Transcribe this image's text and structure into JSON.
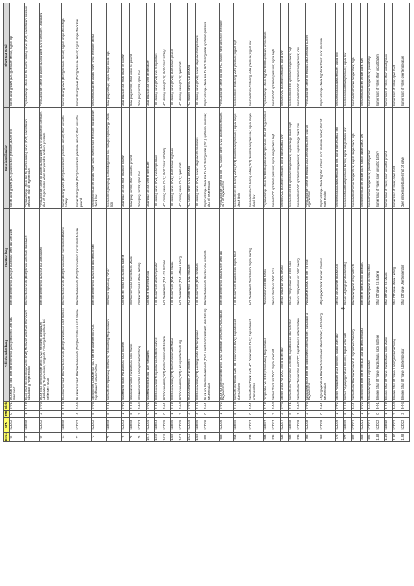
{
  "header": {
    "columns": [
      "Errorcode",
      "SPN",
      "FMI",
      "Blinkcode",
      "Fehlerbeschreibung",
      "Kurztext lang",
      "Error identification",
      "Short text Detail"
    ]
  },
  "table": {
    "rows": [
      [
        "65",
        "523012",
        "0",
        "2-2-1",
        "Drucksensor nach Brennerdosierventil (DV2) Messwert oberhalb Grenzwert",
        "Brennerdosierventil (DV2) Drucksensor oberhalb Grenzwert",
        "Burner dosing valve (DV2) downstream pressure; above limit",
        "Burner dosing valve (DV2) pressure sensor; signal high"
      ],
      [
        "66",
        "523012",
        "1",
        "2-2-2",
        "Druck nach Brennerdosierventil (DV2) Messwert unterhalb Grenzwert; Abschaltung Regeneration",
        "Brennerdosierventil (DV2) Druck unterhalb Grenzwert",
        "Physical range check low for burner dosing valve (DV2) downstream pressure; shut off regeneration",
        "Physical range check low for burner dosing valve (DV2) downstream pressure"
      ],
      [
        "69",
        "523012",
        "2",
        "2-2-3",
        "Druck nach Brennerdosierventil (DV2) Messwert unplausibel; Abschaltung Regeneration, Vergleich mit Umgebungsdruck bei stehendem Motor",
        "Brennerdosierventil (DV2) Druck unplausibel",
        "Physical range check for burner dosing valve (DV2) downstream pressure; shut off regeneration when compared to ambient pressure",
        "Physical range check for burner dosing valve (DV2) pressure; plausibility"
      ],
      [
        "64",
        "523012",
        "3",
        "2-2-4",
        "Drucksensor nach Brennerdosierventil (DV2) Kurzschluss nach Batterie",
        "Brennerdosierventil (DV2) Drucksensor Kurzschluss Batterie",
        "Burner dosing valve (DV2) downstream pressure sensor; short circuit to battery",
        "Burner dosing valve (DV2) pressure sensor; signal range check high"
      ],
      [
        "72",
        "523012",
        "4",
        "2-2-5",
        "Drucksensor nach Brennerdosierventil (DV2) Kurzschluss nach Masse",
        "Brennerdosierventil (DV2) Drucksensor Kurzschluss Masse",
        "Burner dosing valve (DV2) downstream pressure sensor; short circuit to ground",
        "Burner dosing valve (DV2) pressure sensor; signal range check low"
      ],
      [
        "73",
        "523012",
        "5",
        "2-2-6",
        "Sensorfehler Drucksensor nach Brennerdosierventil (DV2); Signalbereich unterschritten",
        "Brennerdosierventil (DV2) Signal unterschritten",
        "Sensor error burner dosing valve (DV2) downstream pressure; signal range check low",
        "Sensor error burner dosing valve (DV2) pressure sensor"
      ],
      [
        "75",
        "523013",
        "0",
        "2-3-1",
        "Sensorfehler Spannung Glühkerze; Abschaltung Regeneration",
        "Glühkerze Spannung Fehler",
        "Sensor error glow plug control diagnostic line voltage; signal range check high",
        "Glow plug voltage; signal range check high"
      ],
      [
        "76",
        "523013",
        "1",
        "2-3-2",
        "Glühkerzenmodul; Kurzschluss nach Batterie",
        "Glühkerzenmodul Kurzschluss Batterie",
        "Glow plug control; short circuit to battery",
        "Glow plug control; short circuit to battery"
      ],
      [
        "78",
        "523013",
        "2",
        "2-3-3",
        "Glühkerzenmodul; Kurzschluss nach Masse",
        "Glühkerzenmodul Kurzschluss Masse",
        "Glow plug control; short circuit to ground",
        "Glow plug control; short circuit to ground"
      ],
      [
        "79",
        "523013",
        "3",
        "2-3-4",
        "Glühkerzenmodul; Leitungsunterbrechung",
        "Glühkerzenmodul offene Leitung",
        "Glow plug control; open load",
        "Glow plug control; open load"
      ],
      [
        "1017",
        "523014",
        "0",
        "2-4-1",
        "Glühkerzentemperatur über Grenzwert",
        "Glühkerze Übertemperatur",
        "Glow plug control; overtemperature",
        "Glow plug control; over temperature"
      ],
      [
        "1018",
        "523014",
        "1",
        "2-4-2",
        "HCI Dosierventil Temperatur oberhalb Grenzwert",
        "HCI Dosierventil Übertemperatur",
        "HCI dosing valve (DV1) overtemperature",
        "HCI dosing valve (DV1) over temperature"
      ],
      [
        "1019",
        "523015",
        "0",
        "2-5-1",
        "HCI Dosierventil (DV1) Kurzschluss nach Batterie",
        "HCI Dosierventil (DV1) KS Batterie",
        "HCI dosing valve (DV1); short circuit to battery",
        "HCI dosing valve (DV1); short circuit battery"
      ],
      [
        "1020",
        "523015",
        "1",
        "2-5-2",
        "HCI Dosierventil (DV1) Kurzschluss nach Masse",
        "HCI Dosierventil (DV1) KS Masse",
        "HCI dosing valve (DV1); short circuit to ground",
        "HCI dosing valve (DV1); short circuit ground"
      ],
      [
        "1021",
        "523015",
        "2",
        "2-5-3",
        "HCI Dosierventil (DV1) Leitungsunterbrechung",
        "HCI Dosierventil (DV1) offene Leitung",
        "HCI dosing valve (DV1); open load",
        "HCI dosing valve (DV1); open load"
      ],
      [
        "1022",
        "523015",
        "3",
        "2-5-4",
        "HCI Dosierventil (DV1) blockiert",
        "HCI Dosierventil (DV1) blockiert",
        "HCI dosing valve (DV1) blocked",
        "HCI dosing valve (DV1) blocked"
      ],
      [
        "1023",
        "523015",
        "4",
        "2-5-5",
        "HCI Dosierventil (DV1) Leistungsstufe Übertemperatur",
        "HCI Dosierventil (DV1) Endstufe",
        "HCI dosing valve (DV1); power stage overtemperature",
        "HCI dosing valve (DV1); power stage over temperature"
      ],
      [
        "901",
        "523016",
        "0",
        "2-6-1",
        "Druck vor Brennerdosierventil (DV2) unterhalb Grenzwert; Abschaltung Regeneration",
        "Brennerdosierventil Druck vorne unterhalb",
        "Physical range check low for HCI dosing valve (DV1) upstream pressure; shut off regeneration",
        "Physical range check low for HCI dosing valve upstream pressure"
      ],
      [
        "908",
        "523016",
        "1",
        "2-6-2",
        "Druck vor Brennerdosierventil (DV2) oberhalb Grenzwert; Abschaltung Regeneration",
        "Brennerdosierventil Druck vorne oberhalb",
        "Physical range check high for HCI dosing valve (DV1) upstream pressure; shut off regeneration",
        "Physical range check high for HCI dosing valve upstream pressure"
      ],
      [
        "514",
        "523016",
        "2",
        "2-6-3",
        "Sensorfehler Druck nach HCI Dosierventil (DV1); Signalbereich überschritten",
        "HCI Dosierventil Drucksensor Signal hoch",
        "Sensor error HCI dosing valve (DV1) downstream pressure; signal range check high",
        "Sensor error HCI dosing valve pressure; signal high"
      ],
      [
        "533",
        "523017",
        "0",
        "2-7-1",
        "Sensorfehler Druck nach HCI Dosierventil (DV1); Signalbereich unterschritten",
        "HCI Dosierventil Drucksensor Signal niedrig",
        "Sensor error HCI dosing valve (DV1) downstream pressure; signal range check low",
        "Sensor error HCI dosing valve pressure; signal low"
      ],
      [
        "534",
        "523017",
        "1",
        "2-7-2",
        "Temperatur vor DOC; Abschaltung Regeneration",
        "Temperatur vor DOC Fehler",
        "Physical range check for DOC upstream temperature; shut off regeneration",
        "Physical range check high for DOC upstream temperature"
      ],
      [
        "535",
        "523017",
        "2",
        "2-7-3",
        "Sensor Druck vor DOC; Signal oberhalb",
        "Sensor Druck vor DOC hoch",
        "Sensor DOC upstream pressure; signal range check high",
        "Sensor DOC upstream pressure; signal high"
      ],
      [
        "536",
        "523017",
        "3",
        "2-7-4",
        "Sensor Druck vor DOC; Signal unterhalb",
        "Sensor Druck vor DOC niedrig",
        "Sensor DOC upstream pressure; signal range check low",
        "Sensor DOC upstream pressure; signal low"
      ],
      [
        "538",
        "523018",
        "0",
        "2-8-1",
        "Sensorfehler Temperatur vor DOC; Signalbereich überschritten",
        "Sensor Temperatur vor DOC hoch",
        "Sensor error DOC upstream temperature; signal range check high",
        "Sensor error DOC upstream temperature; high"
      ],
      [
        "539",
        "523018",
        "1",
        "2-8-2",
        "Sensorfehler Temperatur vor DOC; Signalbereich unterschritten",
        "Sensor Temperatur vor DOC niedrig",
        "Sensor error DOC upstream temperature; signal range check low",
        "Sensor error DOC upstream temperature; low"
      ],
      [
        "765",
        "523018",
        "2",
        "2-8-3",
        "Abgasgegendruck Brenner Minimalwert unterschritten; Abschaltung Regeneration",
        "Abgasgegendruck Brenner minimal",
        "Physical range check for exhaust back pressure burner; shut off regeneration",
        "Physical range check for exhaust back pressure burner"
      ],
      [
        "768",
        "523019",
        "0",
        "2-9-1",
        "Abgasgegendruck Brenner Maximalwert überschritten; Abschaltung Regeneration",
        "Abgasgegendruck Brenner maximal",
        "Physical range check high for exhaust back pressure burner; shut off regeneration",
        "Physical range check high for exhaust back pressure"
      ],
      [
        "776",
        "523019",
        "1",
        "2-9-2",
        "Sensor Abgasgegendruck Brenner; Signal oberhalb",
        "Sensor Abgasgegendruck hoch",
        "Sensor exhaust back pressure burner; signal range check high",
        "Sensor exhaust back pressure; signal high"
      ],
      [
        "777",
        "523019",
        "2",
        "2-9-3",
        "Sensor Abgasgegendruck Brenner; Signal unterhalb",
        "Sensor Abgasgegendruck niedrig",
        "Sensor exhaust back pressure burner; signal range check low",
        "Sensor exhaust back pressure; signal low"
      ],
      [
        "802",
        "523021",
        "0",
        "3-1-1",
        "Sensorfehler Brennertemperatur; Signalüberschreitung",
        "Brennertemperatur Signal hoch",
        "Sensor error burner temperature; signal range check high",
        "Sensor error burner temperature; high"
      ],
      [
        "803",
        "523021",
        "1",
        "3-1-2",
        "Sensorfehler Brennertemperatur; Signalunterschreitung",
        "Brennertemperatur Signal niedrig",
        "Sensor error burner temperature; signal range check low",
        "Sensor error burner temperature; low"
      ],
      [
        "806",
        "523021",
        "2",
        "3-1-3",
        "Brennertemperatur unplausibel",
        "Brennertemperatur unplausibel",
        "Sensor burner temperature; plausibility error",
        "Sensor burner temperature; plausibility"
      ],
      [
        "1188",
        "523022",
        "0",
        "3-2-1",
        "Brenner Shut Off Valve; Kurzschluss nach Batterie",
        "Shut Off Valve KS Batterie",
        "Burner shut off valve; short circuit to battery",
        "Burner shut off valve; short circuit battery"
      ],
      [
        "1189",
        "523022",
        "1",
        "3-2-2",
        "Brenner Shut Off Valve; Kurzschluss nach Masse",
        "Shut Off Valve KS Masse",
        "Burner shut off valve; short circuit to ground",
        "Burner shut off valve; short circuit ground"
      ],
      [
        "1190",
        "523022",
        "2",
        "3-2-3",
        "Brenner Shut Off Valve; Leitungsunterbrechung",
        "Shut Off Valve offene Leitung",
        "Burner shut off valve; open load",
        "Burner shut off valve; open load"
      ],
      [
        "1198",
        "523022",
        "3",
        "3-2-4",
        "Brenner Shut Off Valve; Übertemperatur",
        "Shut Off Valve Übertemperatur",
        "Over temperature burner shut off valve",
        "Burner shut off valve; over temperature"
      ]
    ]
  },
  "page_number": "8"
}
